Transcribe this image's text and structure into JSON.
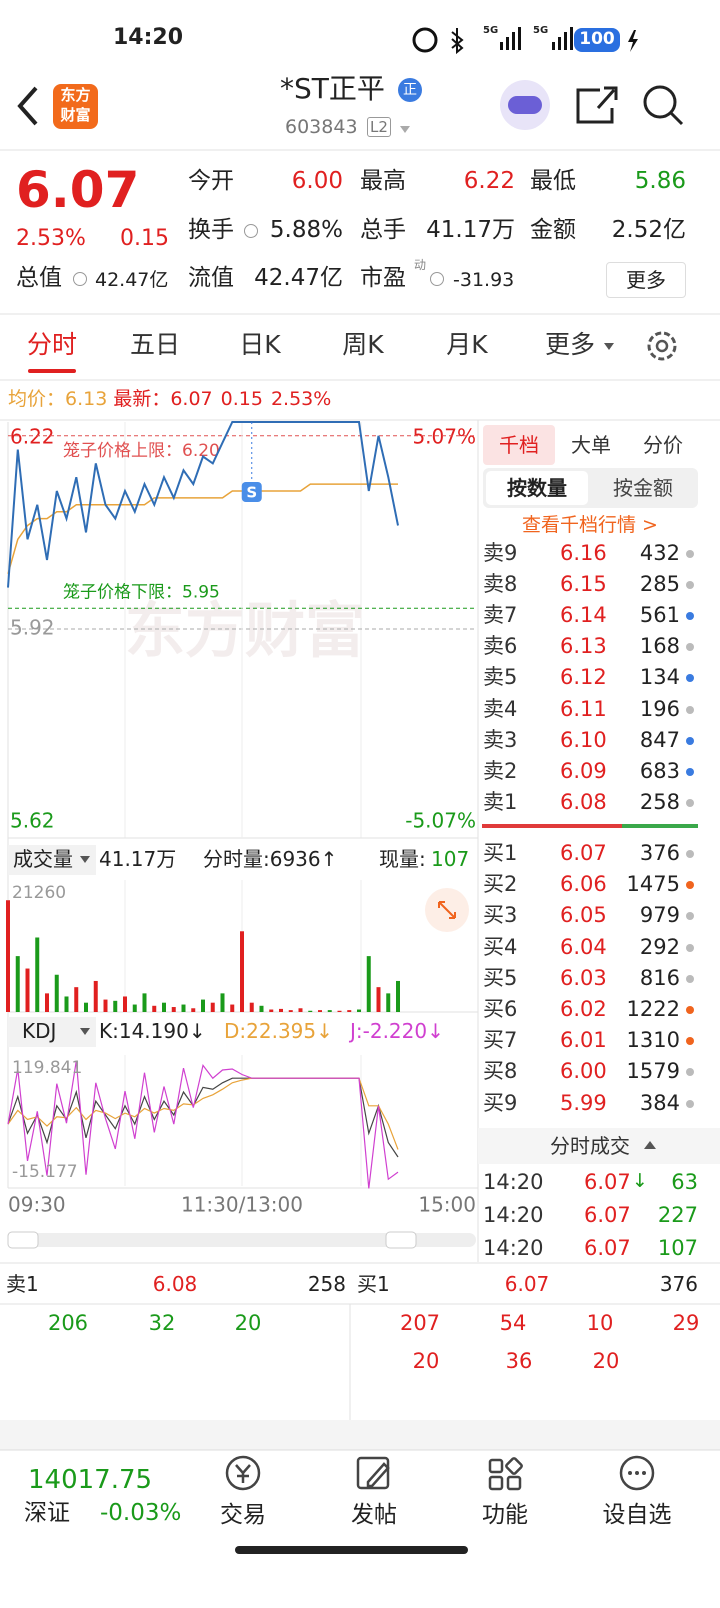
{
  "status_bar": {
    "time": "14:20",
    "network": [
      "5G",
      "5G"
    ],
    "battery": "100"
  },
  "header": {
    "logo": [
      "东方",
      "财富"
    ],
    "title": "*ST正平",
    "badge": "正",
    "code": "603843",
    "level": "L2"
  },
  "quote": {
    "price": "6.07",
    "change_percent": "2.53%",
    "change": "0.15",
    "fields": [
      {
        "label": "今开",
        "value": "6.00"
      },
      {
        "label": "最高",
        "value": "6.22"
      },
      {
        "label": "最低",
        "value": "5.86"
      },
      {
        "label": "换手",
        "value": "5.88%"
      },
      {
        "label": "总手",
        "value": "41.17万"
      },
      {
        "label": "金额",
        "value": "2.52亿"
      },
      {
        "label": "总值",
        "value": "42.47亿"
      },
      {
        "label": "流值",
        "value": "42.47亿"
      },
      {
        "label": "市盈",
        "value": "-31.93",
        "superscript": "动"
      }
    ],
    "more": "更多"
  },
  "tabs": [
    "分时",
    "五日",
    "日K",
    "周K",
    "月K",
    "更多"
  ],
  "summary": {
    "avg_label": "均价：",
    "avg": "6.13",
    "latest_label": "最新：",
    "latest": "6.07",
    "change": "0.15",
    "change_percent": "2.53%"
  },
  "intraday": {
    "ylim": [
      5.62,
      6.22
    ],
    "yticks": [
      6.22,
      5.92,
      5.62
    ],
    "y2lim": [
      -5.07,
      5.07
    ],
    "y2ticks": [
      {
        "value": 5.07,
        "label": "5.07%"
      },
      {
        "value": -5.07,
        "label": "-5.07%"
      }
    ],
    "xlim": [
      0,
      240
    ],
    "xticks": [
      {
        "value": 0,
        "label": "09:30"
      },
      {
        "value": 120,
        "label": "11:30/13:00"
      },
      {
        "value": 240,
        "label": "15:00"
      }
    ],
    "x": [
      0,
      5,
      10,
      15,
      20,
      25,
      30,
      35,
      40,
      45,
      50,
      55,
      60,
      65,
      70,
      75,
      80,
      85,
      90,
      95,
      100,
      105,
      110,
      115,
      120,
      125,
      130,
      135,
      140,
      145,
      150,
      155,
      160,
      165,
      170,
      175,
      180,
      185,
      190,
      195,
      200
    ],
    "price": [
      5.98,
      6.18,
      6.05,
      6.1,
      6.02,
      6.12,
      6.08,
      6.14,
      6.06,
      6.16,
      6.1,
      6.08,
      6.12,
      6.09,
      6.13,
      6.1,
      6.14,
      6.11,
      6.15,
      6.13,
      6.17,
      6.16,
      6.19,
      6.22,
      6.22,
      6.22,
      6.22,
      6.22,
      6.22,
      6.22,
      6.22,
      6.22,
      6.22,
      6.22,
      6.22,
      6.22,
      6.22,
      6.12,
      6.2,
      6.14,
      6.07
    ],
    "avg": [
      6.0,
      6.05,
      6.07,
      6.08,
      6.08,
      6.09,
      6.09,
      6.1,
      6.1,
      6.1,
      6.1,
      6.1,
      6.1,
      6.1,
      6.1,
      6.11,
      6.11,
      6.11,
      6.11,
      6.11,
      6.11,
      6.11,
      6.11,
      6.12,
      6.12,
      6.12,
      6.12,
      6.12,
      6.12,
      6.12,
      6.12,
      6.13,
      6.13,
      6.13,
      6.13,
      6.13,
      6.13,
      6.13,
      6.13,
      6.13,
      6.13
    ],
    "price_color": "#2f6db5",
    "avg_color": "#e8a33a",
    "upper_limit": {
      "value": 6.2,
      "label": "笼子价格上限：6.20"
    },
    "lower_limit": {
      "value": 5.95,
      "label": "笼子价格下限：5.95"
    },
    "marker": {
      "label": "S",
      "x": 125
    },
    "watermark": "东方财富"
  },
  "volume": {
    "label": "成交量",
    "total": "41.17万",
    "tick_volume": "分时量:6936↑",
    "current_label": "现量:",
    "current": "107",
    "ylim": [
      0,
      21260
    ],
    "yticks": [
      21260
    ],
    "values": [
      18000,
      9000,
      7000,
      12000,
      3000,
      6000,
      2500,
      4000,
      1500,
      5000,
      2000,
      1800,
      2500,
      1200,
      3000,
      1000,
      1500,
      800,
      1200,
      600,
      2000,
      1500,
      3000,
      1200,
      13000,
      1500,
      1000,
      400,
      500,
      300,
      600,
      200,
      300,
      300,
      200,
      300,
      400,
      9000,
      4000,
      3000,
      5000
    ],
    "colors": [
      "#e02020",
      "#1a9a1a",
      "#e02020",
      "#1a9a1a",
      "#e02020",
      "#1a9a1a",
      "#1a9a1a",
      "#e02020",
      "#1a9a1a",
      "#e02020",
      "#e02020",
      "#1a9a1a",
      "#e02020",
      "#1a9a1a",
      "#1a9a1a",
      "#e02020",
      "#1a9a1a",
      "#e02020",
      "#1a9a1a",
      "#e02020",
      "#1a9a1a",
      "#e02020",
      "#1a9a1a",
      "#e02020",
      "#e02020",
      "#e02020",
      "#1a9a1a",
      "#e02020",
      "#e02020",
      "#e02020",
      "#e02020",
      "#1a9a1a",
      "#e02020",
      "#1a9a1a",
      "#e02020",
      "#e02020",
      "#1a9a1a",
      "#1a9a1a",
      "#e02020",
      "#1a9a1a",
      "#1a9a1a"
    ]
  },
  "kdj": {
    "label": "KDJ",
    "k": "K:14.190↓",
    "d": "D:22.395↓",
    "j": "J:-2.220↓",
    "ylim": [
      -15.177,
      119.841
    ],
    "yticks": [
      119.841,
      -15.177
    ],
    "series": [
      {
        "color": "#444444",
        "values": [
          50,
          80,
          40,
          60,
          30,
          70,
          55,
          85,
          35,
          75,
          60,
          45,
          70,
          50,
          80,
          55,
          75,
          60,
          85,
          70,
          90,
          88,
          95,
          100,
          100,
          100,
          100,
          100,
          100,
          100,
          100,
          100,
          100,
          100,
          100,
          100,
          100,
          40,
          70,
          30,
          14.19
        ]
      },
      {
        "color": "#e8a33a",
        "values": [
          50,
          65,
          55,
          58,
          48,
          58,
          57,
          68,
          55,
          65,
          62,
          56,
          62,
          58,
          67,
          62,
          67,
          65,
          72,
          71,
          78,
          82,
          88,
          95,
          98,
          100,
          100,
          100,
          100,
          100,
          100,
          100,
          100,
          100,
          100,
          100,
          100,
          70,
          70,
          50,
          22.395
        ]
      },
      {
        "color": "#d040d0",
        "values": [
          50,
          110,
          10,
          64,
          -6,
          94,
          51,
          119,
          -5,
          95,
          56,
          23,
          86,
          34,
          106,
          41,
          91,
          50,
          111,
          68,
          114,
          100,
          109,
          110,
          104,
          100,
          100,
          100,
          100,
          100,
          100,
          100,
          100,
          100,
          100,
          100,
          100,
          -20,
          70,
          -10,
          -2.22
        ]
      }
    ]
  },
  "order_book": {
    "tabs": [
      "千档",
      "大单",
      "分价"
    ],
    "modes": [
      "按数量",
      "按金额"
    ],
    "link": "查看千档行情 >",
    "asks": [
      {
        "label": "卖9",
        "price": "6.16",
        "volume": "432",
        "dot": "#bbbbbb"
      },
      {
        "label": "卖8",
        "price": "6.15",
        "volume": "285",
        "dot": "#bbbbbb"
      },
      {
        "label": "卖7",
        "price": "6.14",
        "volume": "561",
        "dot": "#3a7be0"
      },
      {
        "label": "卖6",
        "price": "6.13",
        "volume": "168",
        "dot": "#bbbbbb"
      },
      {
        "label": "卖5",
        "price": "6.12",
        "volume": "134",
        "dot": "#3a7be0"
      },
      {
        "label": "卖4",
        "price": "6.11",
        "volume": "196",
        "dot": "#bbbbbb"
      },
      {
        "label": "卖3",
        "price": "6.10",
        "volume": "847",
        "dot": "#3a7be0"
      },
      {
        "label": "卖2",
        "price": "6.09",
        "volume": "683",
        "dot": "#3a7be0"
      },
      {
        "label": "卖1",
        "price": "6.08",
        "volume": "258",
        "dot": "#bbbbbb"
      }
    ],
    "bids": [
      {
        "label": "买1",
        "price": "6.07",
        "volume": "376",
        "dot": "#bbbbbb"
      },
      {
        "label": "买2",
        "price": "6.06",
        "volume": "1475",
        "dot": "#f0641e"
      },
      {
        "label": "买3",
        "price": "6.05",
        "volume": "979",
        "dot": "#bbbbbb"
      },
      {
        "label": "买4",
        "price": "6.04",
        "volume": "292",
        "dot": "#bbbbbb"
      },
      {
        "label": "买5",
        "price": "6.03",
        "volume": "816",
        "dot": "#bbbbbb"
      },
      {
        "label": "买6",
        "price": "6.02",
        "volume": "1222",
        "dot": "#f0641e"
      },
      {
        "label": "买7",
        "price": "6.01",
        "volume": "1310",
        "dot": "#f0641e"
      },
      {
        "label": "买8",
        "price": "6.00",
        "volume": "1579",
        "dot": "#bbbbbb"
      },
      {
        "label": "买9",
        "price": "5.99",
        "volume": "384",
        "dot": "#bbbbbb"
      }
    ]
  },
  "trades": {
    "title": "分时成交",
    "rows": [
      {
        "time": "14:20",
        "price": "6.07",
        "arrow": "↓",
        "volume": "63"
      },
      {
        "time": "14:20",
        "price": "6.07",
        "volume": "227"
      },
      {
        "time": "14:20",
        "price": "6.07",
        "volume": "107"
      }
    ]
  },
  "level1": {
    "ask_label": "卖1",
    "ask_price": "6.08",
    "ask_volume": "258",
    "bid_label": "买1",
    "bid_price": "6.07",
    "bid_volume": "376",
    "ask_queue": [
      "206",
      "32",
      "20"
    ],
    "bid_queue": [
      "207",
      "54",
      "10",
      "29",
      "20",
      "36",
      "20"
    ]
  },
  "footer": {
    "index_value": "14017.75",
    "index_name": "深证",
    "index_change": "-0.03%",
    "nav": [
      "交易",
      "发帖",
      "功能",
      "设自选"
    ]
  }
}
